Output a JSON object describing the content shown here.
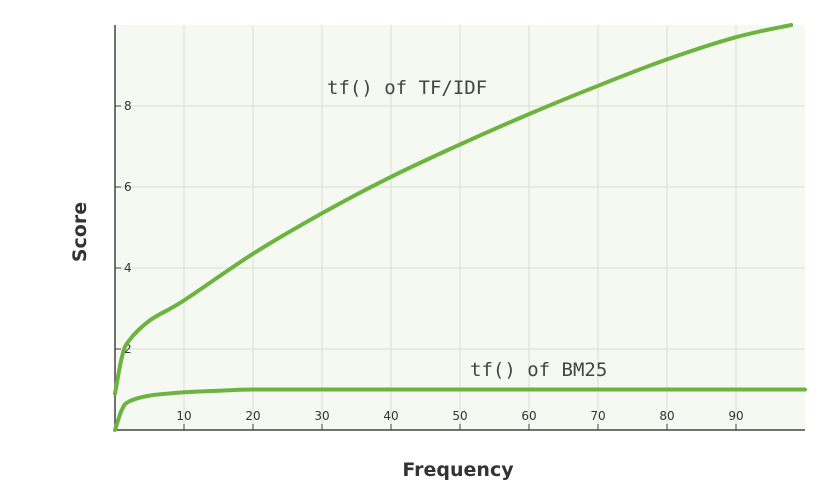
{
  "chart_data": {
    "type": "line",
    "xlabel": "Frequency",
    "ylabel": "Score",
    "xlim": [
      0,
      100
    ],
    "ylim": [
      0,
      10
    ],
    "x_ticks": [
      10,
      20,
      30,
      40,
      50,
      60,
      70,
      80,
      90
    ],
    "y_ticks": [
      2,
      4,
      6,
      8
    ],
    "grid": true,
    "series": [
      {
        "name": "tf() of TF/IDF",
        "color": "#6db33f",
        "x": [
          0,
          1,
          2,
          5,
          10,
          20,
          30,
          40,
          50,
          60,
          70,
          80,
          90,
          98
        ],
        "y": [
          0.9,
          1.8,
          2.2,
          2.7,
          3.2,
          4.35,
          5.35,
          6.25,
          7.05,
          7.8,
          8.5,
          9.15,
          9.7,
          10.0
        ]
      },
      {
        "name": "tf() of BM25",
        "color": "#6db33f",
        "x": [
          0,
          1,
          2,
          5,
          10,
          15,
          20,
          30,
          40,
          50,
          60,
          70,
          80,
          90,
          100
        ],
        "y": [
          0,
          0.5,
          0.7,
          0.85,
          0.93,
          0.97,
          1.0,
          1.0,
          1.0,
          1.0,
          1.0,
          1.0,
          1.0,
          1.0,
          1.0
        ]
      }
    ],
    "annotations": [
      "tf() of TF/IDF",
      "tf() of BM25"
    ]
  }
}
